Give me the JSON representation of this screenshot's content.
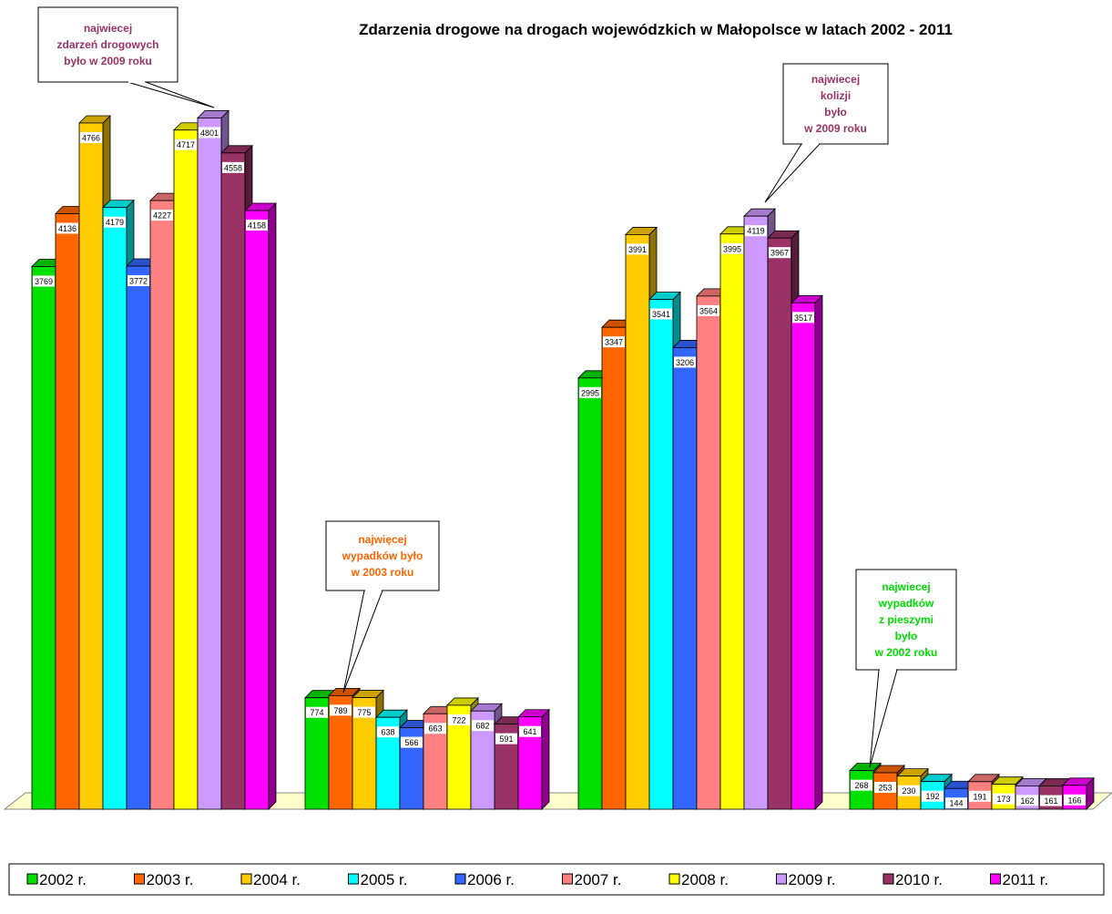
{
  "chart_data": {
    "type": "bar3d",
    "title": "Zdarzenia drogowe na drogach wojewódzkich w Małopolsce w latach 2002 - 2011",
    "categories": [
      null,
      null,
      null,
      null
    ],
    "series": [
      {
        "name": "2002 r.",
        "color": "#00e000",
        "values": [
          3769,
          774,
          2995,
          268
        ]
      },
      {
        "name": "2003 r.",
        "color": "#ff6600",
        "values": [
          4136,
          789,
          3347,
          253
        ]
      },
      {
        "name": "2004 r.",
        "color": "#ffcc00",
        "values": [
          4766,
          775,
          3991,
          230
        ]
      },
      {
        "name": "2005 r.",
        "color": "#00ffff",
        "values": [
          4179,
          638,
          3541,
          192
        ]
      },
      {
        "name": "2006 r.",
        "color": "#3366ff",
        "values": [
          3772,
          566,
          3206,
          144
        ]
      },
      {
        "name": "2007 r.",
        "color": "#ff8080",
        "values": [
          4227,
          663,
          3564,
          191
        ]
      },
      {
        "name": "2008 r.",
        "color": "#ffff00",
        "values": [
          4717,
          722,
          3995,
          173
        ]
      },
      {
        "name": "2009 r.",
        "color": "#cc99ff",
        "values": [
          4801,
          682,
          4119,
          162
        ]
      },
      {
        "name": "2010 r.",
        "color": "#993366",
        "values": [
          4558,
          591,
          3967,
          161
        ]
      },
      {
        "name": "2011 r.",
        "color": "#ff00ff",
        "values": [
          4158,
          641,
          3517,
          166
        ]
      }
    ],
    "annotations": [
      {
        "lines": [
          "najwiecej",
          "zdarzeń drogowych",
          "było w  2009 roku"
        ],
        "color": "#993366"
      },
      {
        "lines": [
          "najwięcej",
          "wypadków było",
          "w 2003 roku"
        ],
        "color": "#ff6600"
      },
      {
        "lines": [
          "najwiecej",
          "kolizji",
          "było",
          "w 2009 roku"
        ],
        "color": "#993366"
      },
      {
        "lines": [
          "najwiecej",
          "wypadków",
          "z pieszymi",
          "było",
          "w 2002 roku"
        ],
        "color": "#00e000"
      }
    ]
  }
}
